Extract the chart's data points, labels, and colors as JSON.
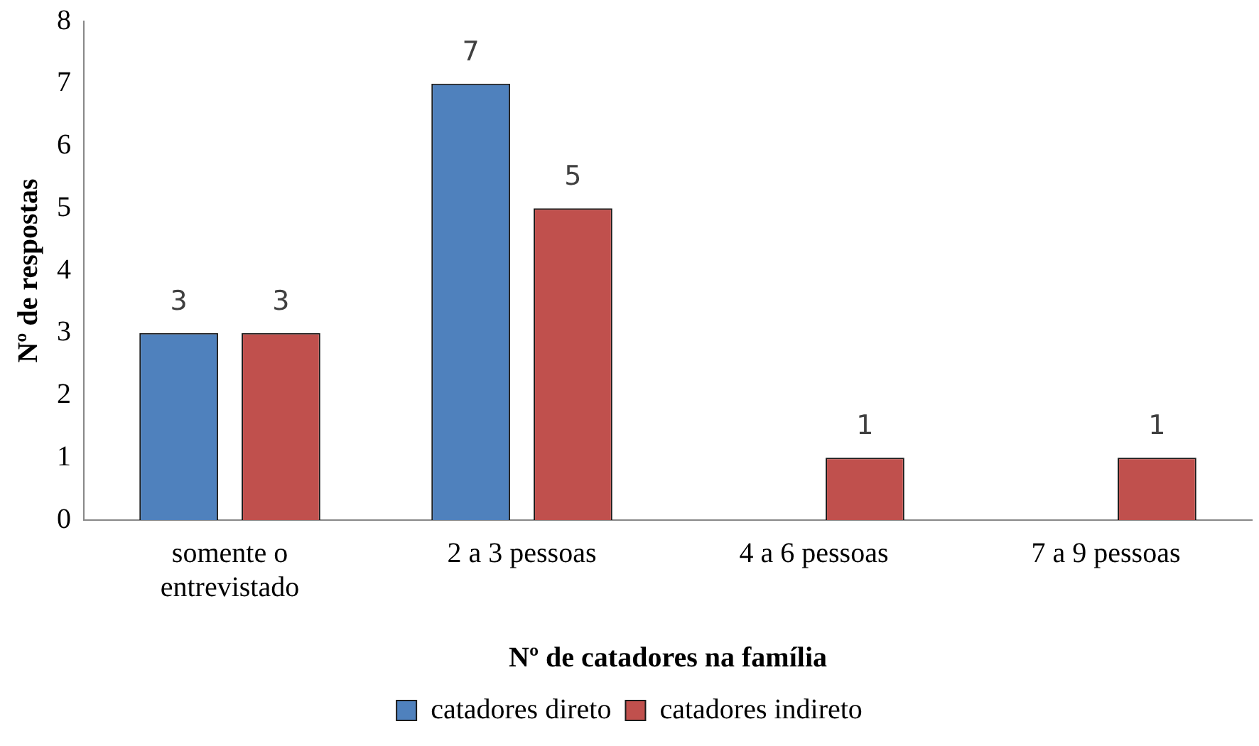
{
  "chart_data": {
    "type": "bar",
    "xlabel": "Nº de catadores na família",
    "ylabel": "Nº de respostas",
    "categories": [
      "somente o entrevistado",
      "2 a 3 pessoas",
      "4 a 6 pessoas",
      "7 a 9 pessoas"
    ],
    "series": [
      {
        "name": "catadores direto",
        "color": "#4f81bd",
        "values": [
          3,
          7,
          null,
          null
        ]
      },
      {
        "name": "catadores indireto",
        "color": "#c0504d",
        "values": [
          3,
          5,
          1,
          1
        ]
      }
    ],
    "ylim": [
      0,
      8
    ],
    "yticks": [
      0,
      1,
      2,
      3,
      4,
      5,
      6,
      7,
      8
    ],
    "grid": false,
    "legend": "bottom",
    "data_labels": true
  }
}
